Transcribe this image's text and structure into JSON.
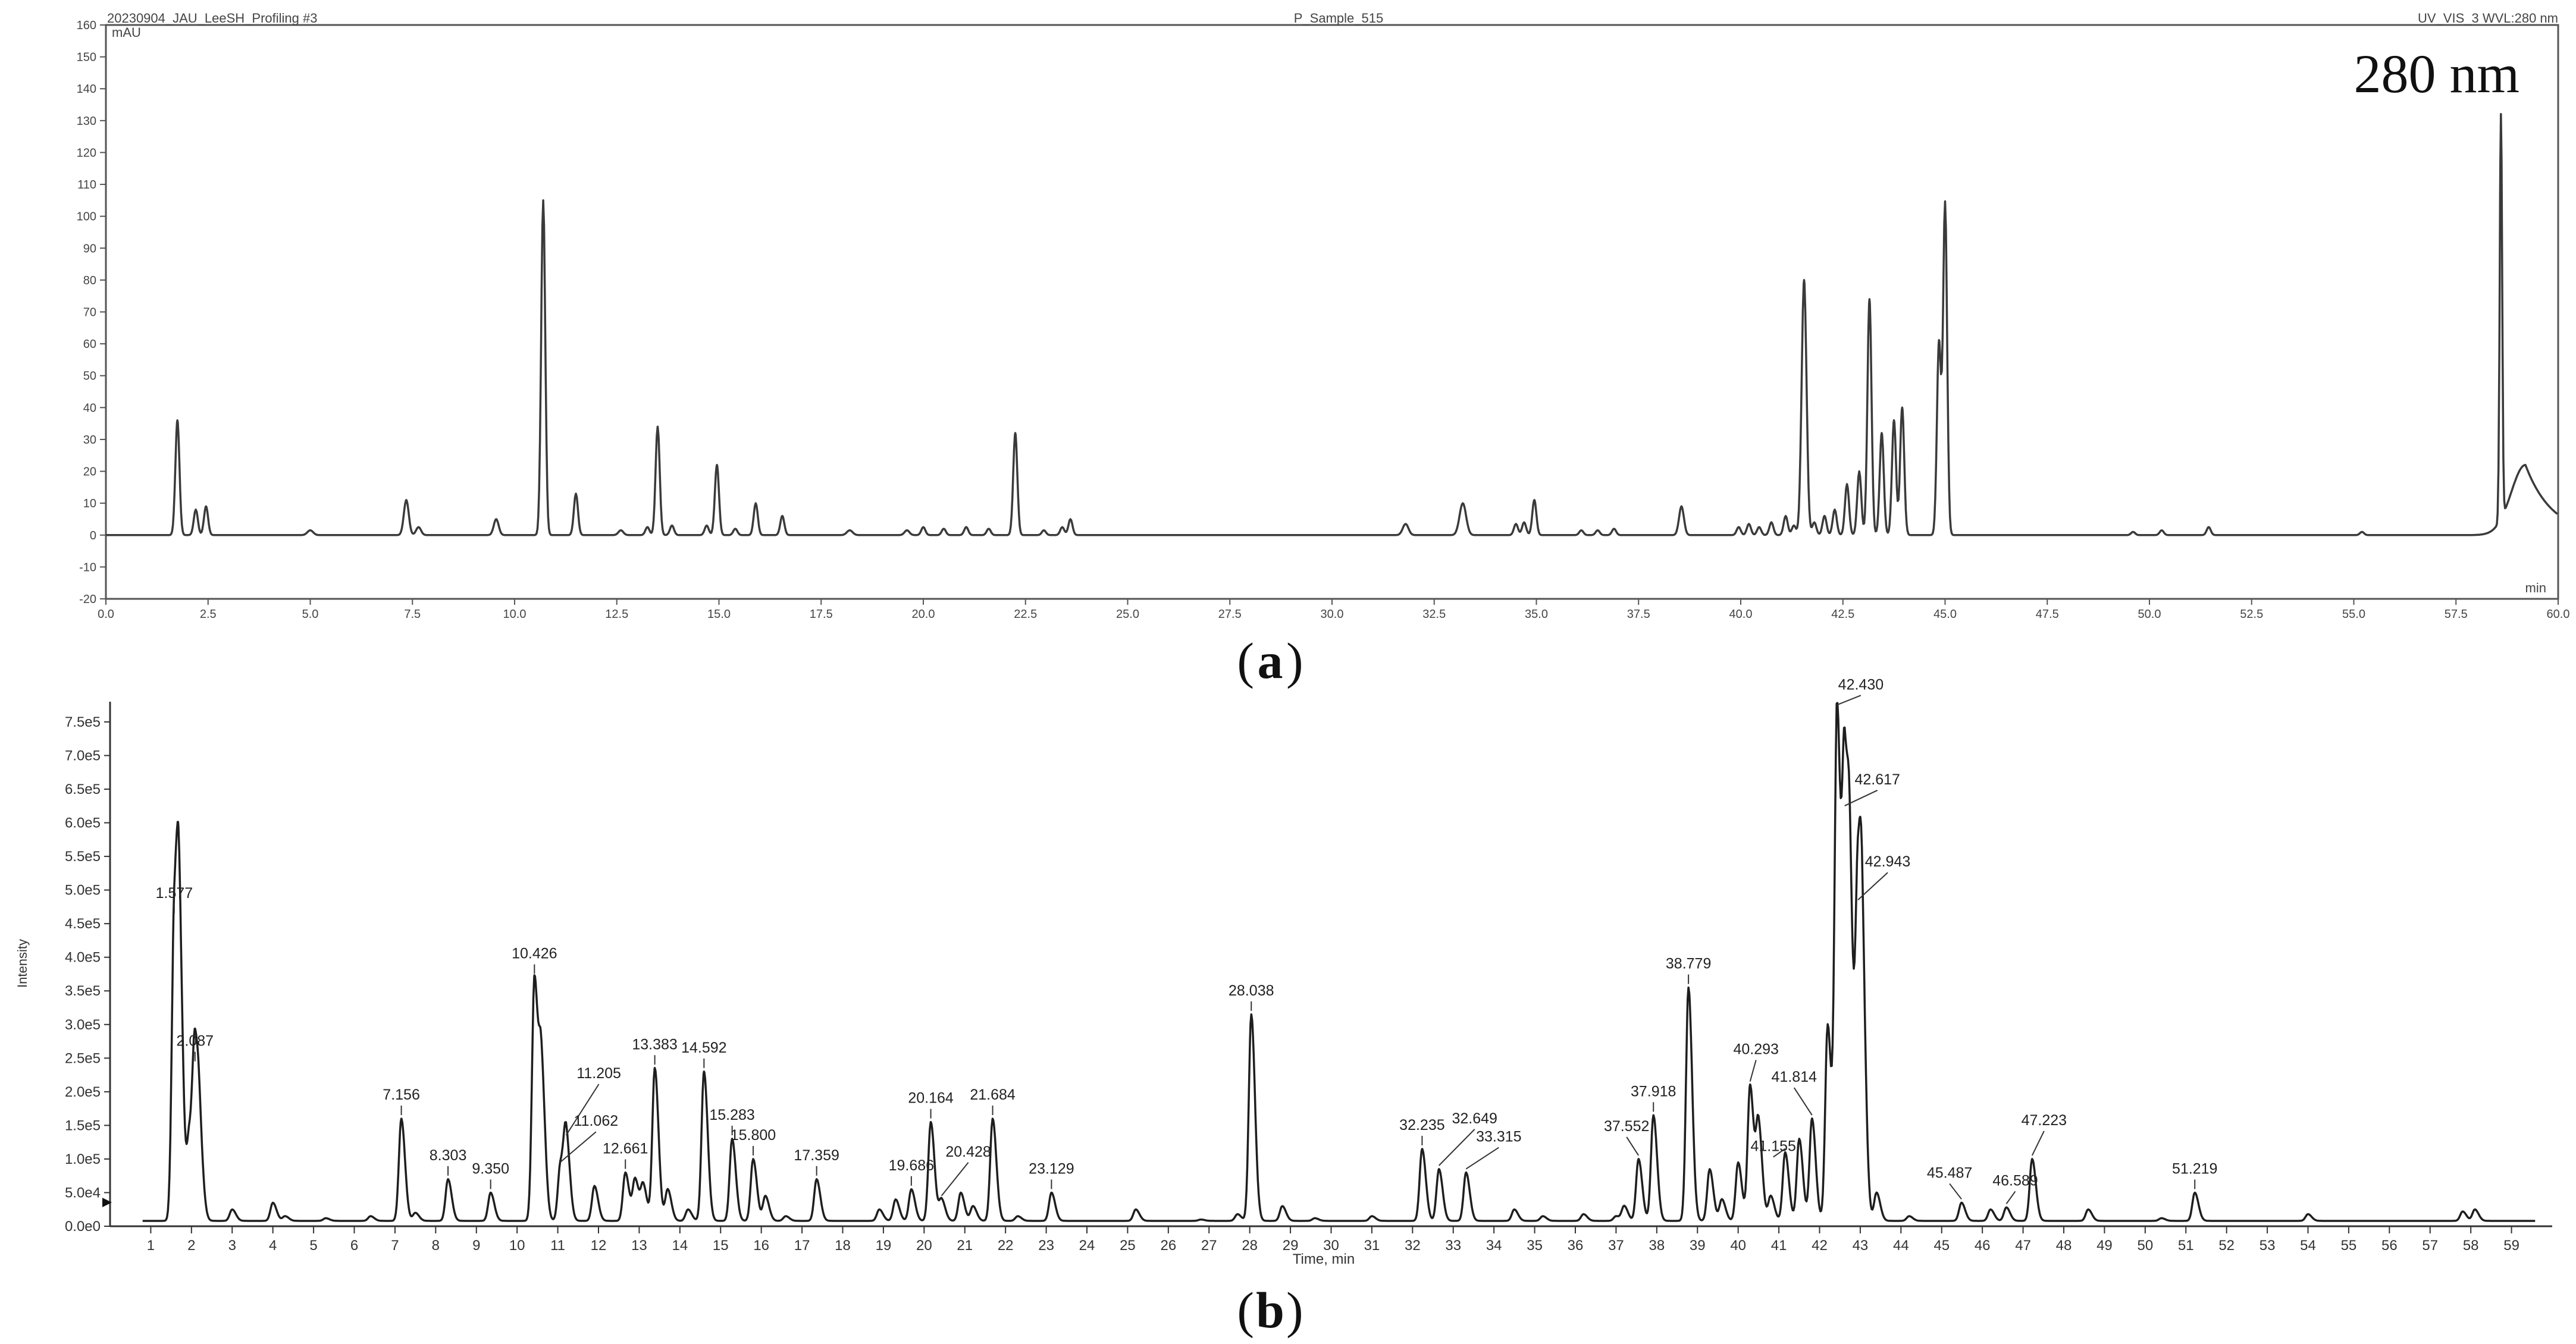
{
  "figure": {
    "panel_a_label": "a",
    "panel_b_label": "b"
  },
  "chart_data": [
    {
      "type": "line",
      "panel": "a",
      "header_left": "20230904_JAU_LeeSH_Profiling #3",
      "header_center": "P_Sample_515",
      "header_right": "UV_VIS_3 WVL:280 nm",
      "annotation": "280  nm",
      "ylabel": "mAU",
      "xlabel": "min",
      "xlim": [
        0,
        60
      ],
      "ylim": [
        -20,
        160
      ],
      "x_ticks": [
        0.0,
        2.5,
        5.0,
        7.5,
        10.0,
        12.5,
        15.0,
        17.5,
        20.0,
        22.5,
        25.0,
        27.5,
        30.0,
        32.5,
        35.0,
        37.5,
        40.0,
        42.5,
        45.0,
        47.5,
        50.0,
        52.5,
        55.0,
        57.5,
        60.0
      ],
      "y_ticks": [
        -20,
        -10,
        0,
        10,
        20,
        30,
        40,
        50,
        60,
        70,
        80,
        90,
        100,
        110,
        120,
        130,
        140,
        150,
        160
      ],
      "baseline": 0,
      "color": "#3a3a3a",
      "peaks": [
        {
          "x": 1.75,
          "y": 36,
          "w": 0.05
        },
        {
          "x": 2.2,
          "y": 8,
          "w": 0.05
        },
        {
          "x": 2.45,
          "y": 9,
          "w": 0.05
        },
        {
          "x": 5.0,
          "y": 1.5,
          "w": 0.07
        },
        {
          "x": 7.35,
          "y": 11,
          "w": 0.06
        },
        {
          "x": 7.65,
          "y": 2.5,
          "w": 0.06
        },
        {
          "x": 9.55,
          "y": 5,
          "w": 0.06
        },
        {
          "x": 10.7,
          "y": 105,
          "w": 0.05
        },
        {
          "x": 11.5,
          "y": 13,
          "w": 0.05
        },
        {
          "x": 12.6,
          "y": 1.5,
          "w": 0.06
        },
        {
          "x": 13.25,
          "y": 2.5,
          "w": 0.05
        },
        {
          "x": 13.5,
          "y": 34,
          "w": 0.05
        },
        {
          "x": 13.85,
          "y": 3,
          "w": 0.05
        },
        {
          "x": 14.7,
          "y": 3,
          "w": 0.05
        },
        {
          "x": 14.95,
          "y": 22,
          "w": 0.05
        },
        {
          "x": 15.4,
          "y": 2,
          "w": 0.05
        },
        {
          "x": 15.9,
          "y": 10,
          "w": 0.05
        },
        {
          "x": 16.55,
          "y": 6,
          "w": 0.05
        },
        {
          "x": 18.2,
          "y": 1.5,
          "w": 0.07
        },
        {
          "x": 19.6,
          "y": 1.5,
          "w": 0.06
        },
        {
          "x": 20.0,
          "y": 2.5,
          "w": 0.05
        },
        {
          "x": 20.5,
          "y": 2.0,
          "w": 0.05
        },
        {
          "x": 21.05,
          "y": 2.5,
          "w": 0.05
        },
        {
          "x": 21.6,
          "y": 2.0,
          "w": 0.05
        },
        {
          "x": 22.25,
          "y": 32,
          "w": 0.05
        },
        {
          "x": 22.95,
          "y": 1.5,
          "w": 0.05
        },
        {
          "x": 23.4,
          "y": 2.5,
          "w": 0.05
        },
        {
          "x": 23.6,
          "y": 5,
          "w": 0.05
        },
        {
          "x": 31.8,
          "y": 3.5,
          "w": 0.07
        },
        {
          "x": 33.2,
          "y": 10,
          "w": 0.08
        },
        {
          "x": 34.5,
          "y": 3.5,
          "w": 0.05
        },
        {
          "x": 34.7,
          "y": 4,
          "w": 0.05
        },
        {
          "x": 34.95,
          "y": 11,
          "w": 0.05
        },
        {
          "x": 36.1,
          "y": 1.5,
          "w": 0.05
        },
        {
          "x": 36.5,
          "y": 1.5,
          "w": 0.05
        },
        {
          "x": 36.9,
          "y": 2.0,
          "w": 0.05
        },
        {
          "x": 38.55,
          "y": 9,
          "w": 0.06
        },
        {
          "x": 39.95,
          "y": 2.5,
          "w": 0.05
        },
        {
          "x": 40.2,
          "y": 3.5,
          "w": 0.05
        },
        {
          "x": 40.45,
          "y": 2.5,
          "w": 0.05
        },
        {
          "x": 40.75,
          "y": 4,
          "w": 0.05
        },
        {
          "x": 41.1,
          "y": 6,
          "w": 0.05
        },
        {
          "x": 41.3,
          "y": 3,
          "w": 0.05
        },
        {
          "x": 41.55,
          "y": 80,
          "w": 0.06
        },
        {
          "x": 41.8,
          "y": 4,
          "w": 0.05
        },
        {
          "x": 42.05,
          "y": 6,
          "w": 0.05
        },
        {
          "x": 42.3,
          "y": 8,
          "w": 0.05
        },
        {
          "x": 42.6,
          "y": 16,
          "w": 0.05
        },
        {
          "x": 42.9,
          "y": 20,
          "w": 0.05
        },
        {
          "x": 43.15,
          "y": 74,
          "w": 0.05
        },
        {
          "x": 43.45,
          "y": 32,
          "w": 0.05
        },
        {
          "x": 43.75,
          "y": 36,
          "w": 0.05
        },
        {
          "x": 43.95,
          "y": 40,
          "w": 0.05
        },
        {
          "x": 44.85,
          "y": 60,
          "w": 0.05
        },
        {
          "x": 45.0,
          "y": 104,
          "w": 0.05
        },
        {
          "x": 49.6,
          "y": 1.0,
          "w": 0.05
        },
        {
          "x": 50.3,
          "y": 1.5,
          "w": 0.05
        },
        {
          "x": 51.45,
          "y": 2.5,
          "w": 0.05
        },
        {
          "x": 55.2,
          "y": 1.0,
          "w": 0.05
        },
        {
          "x": 58.6,
          "y": 127,
          "w": 0.03
        }
      ],
      "hump": {
        "x": 59.2,
        "y": 22,
        "rise": 0.35,
        "decay": 0.65
      }
    },
    {
      "type": "line",
      "panel": "b",
      "xlabel": "Time, min",
      "ylabel": "Intensity",
      "xlim": [
        0,
        60
      ],
      "ylim": [
        0,
        780000
      ],
      "x_ticks": [
        1,
        2,
        3,
        4,
        5,
        6,
        7,
        8,
        9,
        10,
        11,
        12,
        13,
        14,
        15,
        16,
        17,
        18,
        19,
        20,
        21,
        22,
        23,
        24,
        25,
        26,
        27,
        28,
        29,
        30,
        31,
        32,
        33,
        34,
        35,
        36,
        37,
        38,
        39,
        40,
        41,
        42,
        43,
        44,
        45,
        46,
        47,
        48,
        49,
        50,
        51,
        52,
        53,
        54,
        55,
        56,
        57,
        58,
        59
      ],
      "y_tick_values": [
        0,
        50000,
        100000,
        150000,
        200000,
        250000,
        300000,
        350000,
        400000,
        450000,
        500000,
        550000,
        600000,
        650000,
        700000,
        750000
      ],
      "y_tick_labels": [
        "0.0e0",
        "5.0e4",
        "1.0e5",
        "1.5e5",
        "2.0e5",
        "2.5e5",
        "3.0e5",
        "3.5e5",
        "4.0e5",
        "4.5e5",
        "5.0e5",
        "5.5e5",
        "6.0e5",
        "6.5e5",
        "7.0e5",
        "7.5e5"
      ],
      "baseline": 8000,
      "color": "#1e1e1e",
      "labeled_peaks": [
        {
          "label": "1.577",
          "x": 1.577,
          "y": 460000
        },
        {
          "label": "2.087",
          "x": 2.087,
          "y": 240000
        },
        {
          "label": "7.156",
          "x": 7.156,
          "y": 160000
        },
        {
          "label": "8.303",
          "x": 8.303,
          "y": 70000
        },
        {
          "label": "9.350",
          "x": 9.35,
          "y": 50000
        },
        {
          "label": "10.426",
          "x": 10.426,
          "y": 370000
        },
        {
          "label": "11.205",
          "x": 11.205,
          "y": 130000
        },
        {
          "label": "11.062",
          "x": 11.062,
          "y": 90000
        },
        {
          "label": "12.661",
          "x": 12.661,
          "y": 80000
        },
        {
          "label": "13.383",
          "x": 13.383,
          "y": 235000
        },
        {
          "label": "14.592",
          "x": 14.592,
          "y": 230000
        },
        {
          "label": "15.283",
          "x": 15.283,
          "y": 130000
        },
        {
          "label": "15.800",
          "x": 15.8,
          "y": 100000
        },
        {
          "label": "17.359",
          "x": 17.359,
          "y": 70000
        },
        {
          "label": "19.686",
          "x": 19.686,
          "y": 55000
        },
        {
          "label": "20.164",
          "x": 20.164,
          "y": 155000
        },
        {
          "label": "20.428",
          "x": 20.428,
          "y": 40000
        },
        {
          "label": "21.684",
          "x": 21.684,
          "y": 160000
        },
        {
          "label": "23.129",
          "x": 23.129,
          "y": 50000
        },
        {
          "label": "28.038",
          "x": 28.038,
          "y": 315000
        },
        {
          "label": "32.235",
          "x": 32.235,
          "y": 115000
        },
        {
          "label": "32.649",
          "x": 32.649,
          "y": 85000
        },
        {
          "label": "33.315",
          "x": 33.315,
          "y": 80000
        },
        {
          "label": "37.552",
          "x": 37.552,
          "y": 100000
        },
        {
          "label": "37.918",
          "x": 37.918,
          "y": 165000
        },
        {
          "label": "38.779",
          "x": 38.779,
          "y": 355000
        },
        {
          "label": "40.293",
          "x": 40.293,
          "y": 210000
        },
        {
          "label": "41.155",
          "x": 41.155,
          "y": 110000
        },
        {
          "label": "41.814",
          "x": 41.814,
          "y": 160000
        },
        {
          "label": "42.430",
          "x": 42.43,
          "y": 770000
        },
        {
          "label": "42.617",
          "x": 42.617,
          "y": 620000
        },
        {
          "label": "42.943",
          "x": 42.943,
          "y": 480000
        },
        {
          "label": "45.487",
          "x": 45.487,
          "y": 35000
        },
        {
          "label": "46.589",
          "x": 46.589,
          "y": 28000
        },
        {
          "label": "47.223",
          "x": 47.223,
          "y": 100000
        },
        {
          "label": "51.219",
          "x": 51.219,
          "y": 50000
        }
      ],
      "minor_peaks": [
        {
          "x": 1.7,
          "y": 380000
        },
        {
          "x": 1.95,
          "y": 130000
        },
        {
          "x": 2.2,
          "y": 100000
        },
        {
          "x": 3.0,
          "y": 25000
        },
        {
          "x": 4.0,
          "y": 35000
        },
        {
          "x": 4.3,
          "y": 15000
        },
        {
          "x": 5.3,
          "y": 12000
        },
        {
          "x": 6.4,
          "y": 15000
        },
        {
          "x": 7.5,
          "y": 20000
        },
        {
          "x": 10.6,
          "y": 220000
        },
        {
          "x": 11.9,
          "y": 60000
        },
        {
          "x": 12.9,
          "y": 70000
        },
        {
          "x": 13.1,
          "y": 60000
        },
        {
          "x": 13.7,
          "y": 55000
        },
        {
          "x": 14.2,
          "y": 25000
        },
        {
          "x": 16.1,
          "y": 45000
        },
        {
          "x": 16.6,
          "y": 15000
        },
        {
          "x": 18.9,
          "y": 25000
        },
        {
          "x": 19.3,
          "y": 40000
        },
        {
          "x": 20.9,
          "y": 50000
        },
        {
          "x": 21.2,
          "y": 30000
        },
        {
          "x": 22.3,
          "y": 15000
        },
        {
          "x": 25.2,
          "y": 25000
        },
        {
          "x": 26.8,
          "y": 10000
        },
        {
          "x": 27.7,
          "y": 18000
        },
        {
          "x": 28.8,
          "y": 30000
        },
        {
          "x": 29.6,
          "y": 12000
        },
        {
          "x": 31.0,
          "y": 15000
        },
        {
          "x": 34.5,
          "y": 25000
        },
        {
          "x": 35.2,
          "y": 15000
        },
        {
          "x": 36.2,
          "y": 18000
        },
        {
          "x": 37.0,
          "y": 15000
        },
        {
          "x": 37.2,
          "y": 30000
        },
        {
          "x": 39.3,
          "y": 85000
        },
        {
          "x": 39.6,
          "y": 40000
        },
        {
          "x": 40.0,
          "y": 95000
        },
        {
          "x": 40.5,
          "y": 150000
        },
        {
          "x": 40.8,
          "y": 45000
        },
        {
          "x": 41.5,
          "y": 130000
        },
        {
          "x": 42.2,
          "y": 300000
        },
        {
          "x": 42.75,
          "y": 400000
        },
        {
          "x": 43.05,
          "y": 300000
        },
        {
          "x": 43.4,
          "y": 50000
        },
        {
          "x": 44.2,
          "y": 15000
        },
        {
          "x": 46.2,
          "y": 25000
        },
        {
          "x": 48.6,
          "y": 25000
        },
        {
          "x": 50.4,
          "y": 12000
        },
        {
          "x": 54.0,
          "y": 18000
        },
        {
          "x": 57.8,
          "y": 22000
        },
        {
          "x": 58.1,
          "y": 25000
        }
      ]
    }
  ]
}
